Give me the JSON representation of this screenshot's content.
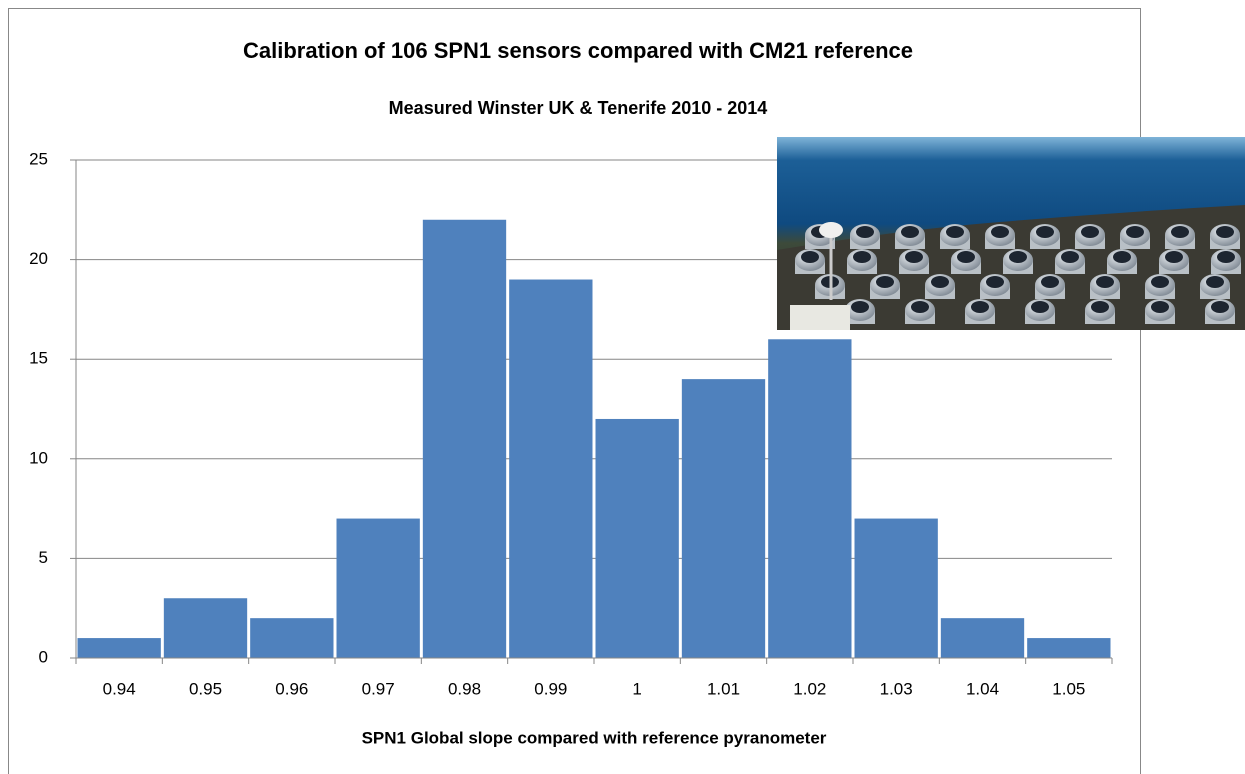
{
  "chart_data": {
    "type": "bar",
    "title": "Calibration of 106 SPN1 sensors compared with CM21 reference",
    "subtitle": "Measured Winster UK & Tenerife 2010 - 2014",
    "x_label": "SPN1 Global slope compared with reference pyranometer",
    "categories": [
      "0.94",
      "0.95",
      "0.96",
      "0.97",
      "0.98",
      "0.99",
      "1",
      "1.01",
      "1.02",
      "1.03",
      "1.04",
      "1.05"
    ],
    "values": [
      1,
      3,
      2,
      7,
      22,
      19,
      12,
      14,
      16,
      7,
      2,
      1
    ],
    "color": "#4f81bd",
    "ylim": [
      0,
      25
    ],
    "yticks": [
      0,
      5,
      10,
      15,
      20,
      25
    ],
    "grid": true
  }
}
